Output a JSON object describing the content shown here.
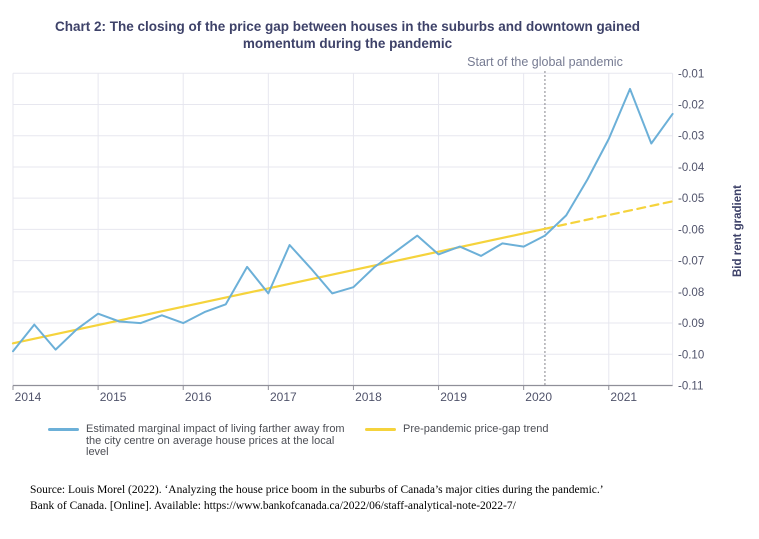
{
  "title": "Chart 2: The closing of the price gap between houses in the suburbs and downtown gained momentum during the pandemic",
  "annotation": "Start of the global pandemic",
  "chart_data": {
    "type": "line",
    "xlim": [
      2014.0,
      2021.75
    ],
    "ylim": [
      -0.11,
      -0.01
    ],
    "ylabel": "Bid rent gradient",
    "grid": true,
    "legend_position": "bottom",
    "pandemic_x": 2020.25,
    "x_ticks": [
      {
        "v": 2014,
        "label": "2014"
      },
      {
        "v": 2015,
        "label": "2015"
      },
      {
        "v": 2016,
        "label": "2016"
      },
      {
        "v": 2017,
        "label": "2017"
      },
      {
        "v": 2018,
        "label": "2018"
      },
      {
        "v": 2019,
        "label": "2019"
      },
      {
        "v": 2020,
        "label": "2020"
      },
      {
        "v": 2021,
        "label": "2021"
      }
    ],
    "y_ticks": [
      {
        "v": -0.01,
        "label": "-0.01"
      },
      {
        "v": -0.02,
        "label": "-0.02"
      },
      {
        "v": -0.03,
        "label": "-0.03"
      },
      {
        "v": -0.04,
        "label": "-0.04"
      },
      {
        "v": -0.05,
        "label": "-0.05"
      },
      {
        "v": -0.06,
        "label": "-0.06"
      },
      {
        "v": -0.07,
        "label": "-0.07"
      },
      {
        "v": -0.08,
        "label": "-0.08"
      },
      {
        "v": -0.09,
        "label": "-0.09"
      },
      {
        "v": -0.1,
        "label": "-0.10"
      },
      {
        "v": -0.11,
        "label": "-0.11"
      }
    ],
    "series": [
      {
        "name": "Estimated marginal impact of living farther away from the city centre on average house prices at the local level",
        "color": "#6cb0d8",
        "style": "solid",
        "x_start": 2014.0,
        "x_step": 0.25,
        "values": [
          -0.099,
          -0.0905,
          -0.0985,
          -0.092,
          -0.087,
          -0.0895,
          -0.09,
          -0.0875,
          -0.09,
          -0.0865,
          -0.084,
          -0.072,
          -0.0805,
          -0.065,
          -0.0725,
          -0.0805,
          -0.0785,
          -0.072,
          -0.067,
          -0.062,
          -0.068,
          -0.0655,
          -0.0685,
          -0.0645,
          -0.0655,
          -0.062,
          -0.0555,
          -0.044,
          -0.031,
          -0.015,
          -0.0325,
          -0.023
        ]
      },
      {
        "name": "Pre-pandemic price-gap trend",
        "color": "#f5d33c",
        "style": "solid-then-dashed-after-pandemic",
        "points": [
          {
            "x": 2014.0,
            "v": -0.0965
          },
          {
            "x": 2020.25,
            "v": -0.0598
          },
          {
            "x": 2021.75,
            "v": -0.051
          }
        ]
      }
    ]
  },
  "colors": {
    "title": "#3e4269",
    "tick_label": "#50536b",
    "annotation": "#767b92",
    "grid": "#e7e7ef",
    "axis": "#8f8f99",
    "pandemic_line": "#84848c",
    "blue_series": "#6cb0d8",
    "yellow_series": "#f5d33c"
  },
  "source": {
    "line1": "Source: Louis Morel (2022). ‘Analyzing the house price boom in the suburbs of Canada’s major cities during the pandemic.’",
    "line2": "Bank of Canada. [Online]. Available: https://www.bankofcanada.ca/2022/06/staff-analytical-note-2022-7/"
  }
}
